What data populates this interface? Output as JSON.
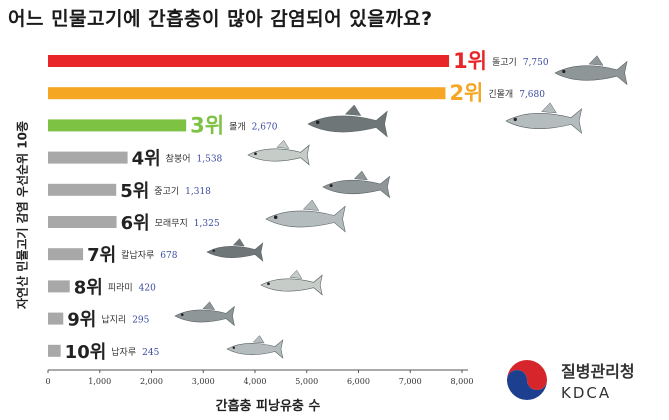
{
  "title": "어느 민물고기에 간흡충이 많아 감염되어 있을까요?",
  "chart_data": {
    "type": "bar",
    "orientation": "horizontal",
    "xlabel": "간흡충 피낭유충 수",
    "ylabel": "자연산 민물고기 감염 우선순위 10종",
    "xlim": [
      0,
      8000
    ],
    "xticks": [
      "0",
      "1,000",
      "2,000",
      "3,000",
      "4,000",
      "5,000",
      "6,000",
      "7,000",
      "8,000"
    ],
    "categories": [
      "돌고기",
      "긴몰개",
      "몰개",
      "참붕어",
      "중고기",
      "모래무지",
      "칼납자루",
      "피라미",
      "납지리",
      "납자루"
    ],
    "ranks": [
      "1위",
      "2위",
      "3위",
      "4위",
      "5위",
      "6위",
      "7위",
      "8위",
      "9위",
      "10위"
    ],
    "values": [
      7750,
      7680,
      2670,
      1538,
      1318,
      1325,
      678,
      420,
      295,
      245
    ],
    "value_labels": [
      "7,750",
      "7,680",
      "2,670",
      "1,538",
      "1,318",
      "1,325",
      "678",
      "420",
      "295",
      "245"
    ],
    "bar_colors": [
      "#e8262a",
      "#f5a623",
      "#7dc242",
      "#a8a8a8",
      "#a8a8a8",
      "#a8a8a8",
      "#a8a8a8",
      "#a8a8a8",
      "#a8a8a8",
      "#a8a8a8"
    ],
    "rank_colors": [
      "#e8262a",
      "#f5a623",
      "#7dc242",
      "#222222",
      "#222222",
      "#222222",
      "#222222",
      "#222222",
      "#222222",
      "#222222"
    ],
    "value_color": "#3a4aa0",
    "grid": false
  },
  "logo": {
    "name_ko": "질병관리청",
    "name_en": "KDCA",
    "colors": {
      "red": "#d6262c",
      "blue": "#1d3f8f"
    }
  },
  "decoration": {
    "fish_colors": [
      "#8e9698",
      "#b4bcbe",
      "#6e7678",
      "#c6ccc8"
    ]
  }
}
